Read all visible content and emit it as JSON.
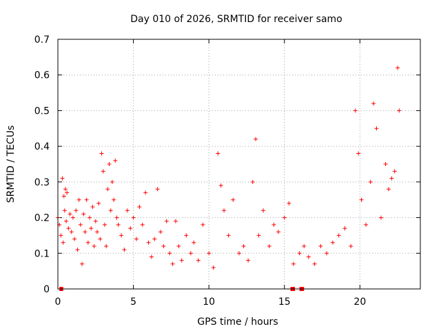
{
  "chart_data": {
    "type": "scatter",
    "title": "Day 010 of 2026, SRMTID for receiver samo",
    "xlabel": "GPS time / hours",
    "ylabel": "SRMTID / TECUs",
    "xlim": [
      0,
      24
    ],
    "ylim": [
      0,
      0.7
    ],
    "xticks": [
      0,
      5,
      10,
      15,
      20
    ],
    "yticks": [
      0,
      0.1,
      0.2,
      0.3,
      0.4,
      0.5,
      0.6,
      0.7
    ],
    "xtick_labels": [
      "0",
      "5",
      "10",
      "15",
      "20"
    ],
    "ytick_labels": [
      "0",
      "0.1",
      "0.2",
      "0.3",
      "0.4",
      "0.5",
      "0.6",
      "0.7"
    ],
    "grid": true,
    "marker": "plus",
    "series": [
      {
        "name": "SRMTID",
        "color": "#ff0000",
        "points": [
          [
            0.0,
            0.2
          ],
          [
            0.1,
            0.18
          ],
          [
            0.2,
            0.15
          ],
          [
            0.3,
            0.31
          ],
          [
            0.35,
            0.13
          ],
          [
            0.4,
            0.26
          ],
          [
            0.45,
            0.22
          ],
          [
            0.5,
            0.28
          ],
          [
            0.55,
            0.19
          ],
          [
            0.6,
            0.27
          ],
          [
            0.7,
            0.17
          ],
          [
            0.8,
            0.21
          ],
          [
            0.9,
            0.16
          ],
          [
            1.0,
            0.2
          ],
          [
            1.1,
            0.14
          ],
          [
            1.2,
            0.22
          ],
          [
            1.3,
            0.11
          ],
          [
            1.4,
            0.25
          ],
          [
            1.5,
            0.18
          ],
          [
            1.6,
            0.07
          ],
          [
            1.7,
            0.21
          ],
          [
            1.8,
            0.16
          ],
          [
            1.9,
            0.25
          ],
          [
            2.0,
            0.13
          ],
          [
            2.1,
            0.2
          ],
          [
            2.2,
            0.17
          ],
          [
            2.3,
            0.23
          ],
          [
            2.4,
            0.12
          ],
          [
            2.5,
            0.19
          ],
          [
            2.6,
            0.16
          ],
          [
            2.7,
            0.24
          ],
          [
            2.8,
            0.14
          ],
          [
            2.9,
            0.38
          ],
          [
            3.0,
            0.33
          ],
          [
            3.1,
            0.18
          ],
          [
            3.2,
            0.12
          ],
          [
            3.3,
            0.28
          ],
          [
            3.4,
            0.35
          ],
          [
            3.5,
            0.22
          ],
          [
            3.6,
            0.3
          ],
          [
            3.7,
            0.25
          ],
          [
            3.8,
            0.36
          ],
          [
            3.9,
            0.2
          ],
          [
            4.0,
            0.18
          ],
          [
            4.2,
            0.15
          ],
          [
            4.4,
            0.11
          ],
          [
            4.6,
            0.22
          ],
          [
            4.8,
            0.17
          ],
          [
            5.0,
            0.2
          ],
          [
            5.2,
            0.14
          ],
          [
            5.4,
            0.23
          ],
          [
            5.6,
            0.18
          ],
          [
            5.8,
            0.27
          ],
          [
            6.0,
            0.13
          ],
          [
            6.2,
            0.09
          ],
          [
            6.4,
            0.14
          ],
          [
            6.6,
            0.28
          ],
          [
            6.8,
            0.16
          ],
          [
            7.0,
            0.12
          ],
          [
            7.2,
            0.19
          ],
          [
            7.4,
            0.1
          ],
          [
            7.6,
            0.07
          ],
          [
            7.8,
            0.19
          ],
          [
            8.0,
            0.12
          ],
          [
            8.2,
            0.08
          ],
          [
            8.5,
            0.15
          ],
          [
            8.8,
            0.1
          ],
          [
            9.0,
            0.13
          ],
          [
            9.3,
            0.08
          ],
          [
            9.6,
            0.18
          ],
          [
            10.0,
            0.1
          ],
          [
            10.3,
            0.06
          ],
          [
            10.6,
            0.38
          ],
          [
            10.8,
            0.29
          ],
          [
            11.0,
            0.22
          ],
          [
            11.3,
            0.15
          ],
          [
            11.6,
            0.25
          ],
          [
            12.0,
            0.1
          ],
          [
            12.3,
            0.12
          ],
          [
            12.6,
            0.08
          ],
          [
            12.9,
            0.3
          ],
          [
            13.1,
            0.42
          ],
          [
            13.3,
            0.15
          ],
          [
            13.6,
            0.22
          ],
          [
            14.0,
            0.12
          ],
          [
            14.3,
            0.18
          ],
          [
            14.6,
            0.16
          ],
          [
            15.0,
            0.2
          ],
          [
            15.3,
            0.24
          ],
          [
            15.6,
            0.07
          ],
          [
            16.0,
            0.1
          ],
          [
            16.3,
            0.12
          ],
          [
            16.6,
            0.09
          ],
          [
            17.0,
            0.07
          ],
          [
            17.4,
            0.12
          ],
          [
            17.8,
            0.1
          ],
          [
            18.2,
            0.13
          ],
          [
            18.6,
            0.15
          ],
          [
            19.0,
            0.17
          ],
          [
            19.4,
            0.12
          ],
          [
            19.7,
            0.5
          ],
          [
            19.9,
            0.38
          ],
          [
            20.1,
            0.25
          ],
          [
            20.4,
            0.18
          ],
          [
            20.7,
            0.3
          ],
          [
            20.9,
            0.52
          ],
          [
            21.1,
            0.45
          ],
          [
            21.4,
            0.2
          ],
          [
            21.7,
            0.35
          ],
          [
            21.9,
            0.28
          ],
          [
            22.1,
            0.31
          ],
          [
            22.3,
            0.33
          ],
          [
            22.5,
            0.62
          ],
          [
            22.6,
            0.5
          ]
        ]
      }
    ],
    "gaps": [
      [
        0.1,
        0.35
      ],
      [
        15.4,
        15.7
      ],
      [
        16.0,
        16.3
      ]
    ]
  }
}
